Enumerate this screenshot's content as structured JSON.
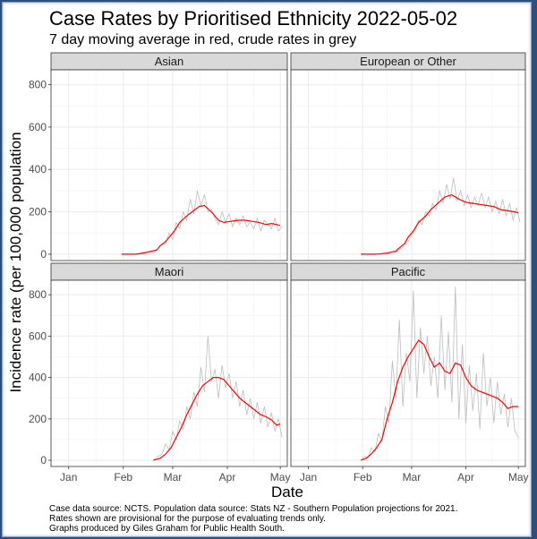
{
  "title": "Case Rates by Prioritised Ethnicity 2022-05-02",
  "subtitle": "7 day moving average in red, crude rates in grey",
  "caption_lines": [
    "Case data source: NCTS. Population data source: Stats NZ -  Southern Population projections for 2021.",
    "Rates shown are provisional for the purpose of evaluating trends only.",
    "Graphs produced by Giles Graham for Public Health South."
  ],
  "colors": {
    "moving_average": "#ff0000",
    "crude_rate": "#bdbdbd",
    "strip_fill": "#d9d9d9",
    "grid": "#ebebeb",
    "panel_border": "#333333"
  },
  "chart_data": {
    "type": "line",
    "layout": "facet 2x2",
    "xlabel": "Date",
    "ylabel": "Incidence rate (per 100,000 population",
    "x_ticks": [
      "Jan",
      "Feb",
      "Mar",
      "Apr",
      "May"
    ],
    "x_tick_days": [
      0,
      31,
      59,
      90,
      120
    ],
    "x_day_origin": "2022-01-01",
    "ylim": [
      -30,
      870
    ],
    "y_ticks": [
      0,
      200,
      400,
      600,
      800
    ],
    "grid": true,
    "panels": [
      {
        "name": "Asian",
        "series": [
          {
            "name": "7 day moving average",
            "x": [
              30,
              38,
              40,
              45,
              50,
              52,
              55,
              57,
              60,
              63,
              67,
              70,
              74,
              77,
              79,
              82,
              85,
              88,
              92,
              96,
              100,
              104,
              108,
              112,
              115,
              118,
              120
            ],
            "values": [
              0,
              0,
              2,
              10,
              20,
              40,
              60,
              80,
              110,
              150,
              180,
              200,
              225,
              230,
              215,
              190,
              160,
              150,
              155,
              160,
              160,
              155,
              150,
              140,
              145,
              140,
              135
            ]
          },
          {
            "name": "crude rate",
            "x": [
              30,
              45,
              49,
              52,
              55,
              57,
              59,
              61,
              63,
              65,
              67,
              69,
              71,
              73,
              75,
              77,
              79,
              81,
              83,
              85,
              87,
              89,
              91,
              93,
              95,
              97,
              99,
              101,
              103,
              105,
              107,
              109,
              111,
              113,
              115,
              117,
              119,
              121
            ],
            "values": [
              0,
              0,
              10,
              40,
              50,
              100,
              70,
              150,
              120,
              200,
              160,
              260,
              190,
              300,
              230,
              280,
              200,
              210,
              170,
              140,
              200,
              150,
              190,
              130,
              170,
              140,
              180,
              130,
              150,
              120,
              170,
              110,
              160,
              140,
              120,
              170,
              110,
              130
            ]
          }
        ]
      },
      {
        "name": "European or Other",
        "series": [
          {
            "name": "7 day moving average",
            "x": [
              30,
              38,
              40,
              45,
              50,
              52,
              55,
              57,
              60,
              63,
              67,
              70,
              74,
              78,
              82,
              86,
              90,
              94,
              98,
              102,
              106,
              110,
              114,
              118,
              120
            ],
            "values": [
              0,
              0,
              1,
              5,
              15,
              30,
              50,
              80,
              110,
              150,
              180,
              210,
              240,
              270,
              280,
              260,
              245,
              240,
              235,
              230,
              225,
              210,
              205,
              200,
              195
            ]
          },
          {
            "name": "crude rate",
            "x": [
              30,
              45,
              49,
              52,
              55,
              57,
              59,
              61,
              63,
              65,
              67,
              69,
              71,
              73,
              75,
              77,
              79,
              81,
              83,
              85,
              87,
              89,
              91,
              93,
              95,
              97,
              99,
              101,
              103,
              105,
              107,
              109,
              111,
              113,
              115,
              117,
              119,
              121
            ],
            "values": [
              0,
              0,
              5,
              20,
              40,
              60,
              90,
              110,
              160,
              140,
              200,
              180,
              240,
              210,
              300,
              240,
              330,
              260,
              360,
              250,
              300,
              230,
              280,
              220,
              270,
              230,
              290,
              220,
              270,
              200,
              250,
              190,
              260,
              180,
              240,
              160,
              220,
              150
            ]
          }
        ]
      },
      {
        "name": "Maori",
        "series": [
          {
            "name": "7 day moving average",
            "x": [
              48,
              52,
              55,
              58,
              61,
              64,
              67,
              70,
              73,
              76,
              79,
              82,
              85,
              88,
              91,
              94,
              97,
              100,
              103,
              106,
              109,
              112,
              115,
              118,
              120
            ],
            "values": [
              0,
              10,
              30,
              60,
              110,
              160,
              220,
              270,
              320,
              360,
              380,
              400,
              400,
              390,
              360,
              330,
              300,
              280,
              260,
              240,
              220,
              210,
              195,
              170,
              175
            ]
          },
          {
            "name": "crude rate",
            "x": [
              48,
              51,
              53,
              55,
              57,
              59,
              61,
              63,
              65,
              67,
              69,
              71,
              73,
              75,
              77,
              79,
              81,
              83,
              85,
              87,
              89,
              91,
              93,
              95,
              97,
              99,
              101,
              103,
              105,
              107,
              109,
              111,
              113,
              115,
              117,
              119,
              121
            ],
            "values": [
              0,
              20,
              30,
              80,
              50,
              140,
              100,
              190,
              150,
              260,
              200,
              330,
              260,
              450,
              330,
              600,
              380,
              440,
              300,
              460,
              350,
              420,
              300,
              380,
              260,
              340,
              220,
              300,
              200,
              280,
              180,
              260,
              160,
              230,
              140,
              200,
              110
            ]
          }
        ]
      },
      {
        "name": "Pacific",
        "series": [
          {
            "name": "7 day moving average",
            "x": [
              30,
              33,
              36,
              39,
              42,
              45,
              48,
              51,
              54,
              57,
              60,
              63,
              66,
              69,
              72,
              75,
              78,
              81,
              84,
              87,
              90,
              93,
              96,
              99,
              102,
              105,
              108,
              111,
              114,
              117,
              120
            ],
            "values": [
              0,
              10,
              30,
              60,
              100,
              200,
              280,
              380,
              450,
              500,
              540,
              580,
              560,
              500,
              450,
              470,
              430,
              420,
              470,
              460,
              400,
              360,
              340,
              330,
              320,
              310,
              300,
              280,
              250,
              260,
              260
            ]
          },
          {
            "name": "crude rate",
            "x": [
              30,
              32,
              34,
              36,
              38,
              40,
              42,
              44,
              46,
              48,
              50,
              52,
              54,
              56,
              58,
              60,
              62,
              64,
              66,
              68,
              70,
              72,
              74,
              76,
              78,
              80,
              82,
              84,
              86,
              88,
              90,
              92,
              94,
              96,
              98,
              100,
              102,
              104,
              106,
              108,
              110,
              112,
              114,
              116,
              118,
              120
            ],
            "values": [
              0,
              20,
              10,
              60,
              40,
              130,
              90,
              260,
              180,
              480,
              300,
              680,
              260,
              520,
              380,
              820,
              300,
              640,
              420,
              600,
              360,
              500,
              300,
              700,
              340,
              620,
              280,
              840,
              200,
              560,
              180,
              460,
              240,
              420,
              150,
              520,
              260,
              400,
              180,
              380,
              220,
              320,
              160,
              300,
              140,
              110
            ]
          }
        ]
      }
    ]
  }
}
